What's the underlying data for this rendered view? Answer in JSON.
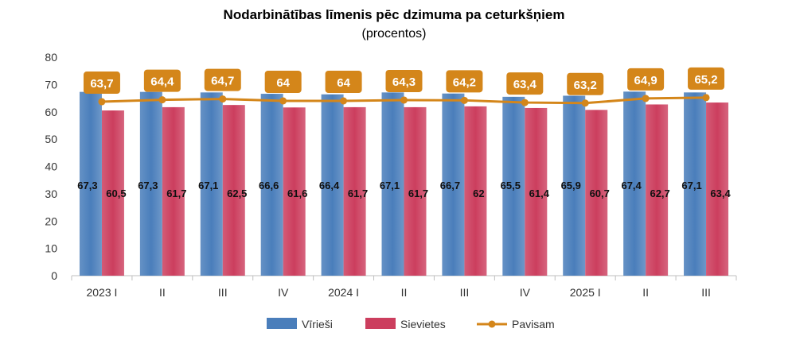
{
  "chart_data": {
    "type": "bar",
    "title": "Nodarbinātības līmenis pēc dzimuma pa ceturkšņiem",
    "subtitle": "(procentos)",
    "categories": [
      "2023 I",
      "II",
      "III",
      "IV",
      "2024 I",
      "II",
      "III",
      "IV",
      "2025 I",
      "II",
      "III"
    ],
    "ylim": [
      0,
      80
    ],
    "yticks": [
      0,
      10,
      20,
      30,
      40,
      50,
      60,
      70,
      80
    ],
    "series": [
      {
        "name": "Vīrieši",
        "type": "bar",
        "color": "#4a7ebb",
        "values": [
          67.3,
          67.3,
          67.1,
          66.6,
          66.4,
          67.1,
          66.7,
          65.5,
          65.9,
          67.4,
          67.1
        ],
        "labels": [
          "67,3",
          "67,3",
          "67,1",
          "66,6",
          "66,4",
          "67,1",
          "66,7",
          "65,5",
          "65,9",
          "67,4",
          "67,1"
        ]
      },
      {
        "name": "Sievietes",
        "type": "bar",
        "color": "#cc3e5e",
        "values": [
          60.5,
          61.7,
          62.5,
          61.6,
          61.7,
          61.7,
          62,
          61.4,
          60.7,
          62.7,
          63.4
        ],
        "labels": [
          "60,5",
          "61,7",
          "62,5",
          "61,6",
          "61,7",
          "61,7",
          "62",
          "61,4",
          "60,7",
          "62,7",
          "63,4"
        ]
      },
      {
        "name": "Pavisam",
        "type": "line",
        "color": "#d4861a",
        "values": [
          63.7,
          64.4,
          64.7,
          64,
          64,
          64.3,
          64.2,
          63.4,
          63.2,
          64.9,
          65.2
        ],
        "labels": [
          "63,7",
          "64,4",
          "64,7",
          "64",
          "64",
          "64,3",
          "64,2",
          "63,4",
          "63,2",
          "64,9",
          "65,2"
        ]
      }
    ],
    "grid": false,
    "legend": "bottom-center"
  }
}
